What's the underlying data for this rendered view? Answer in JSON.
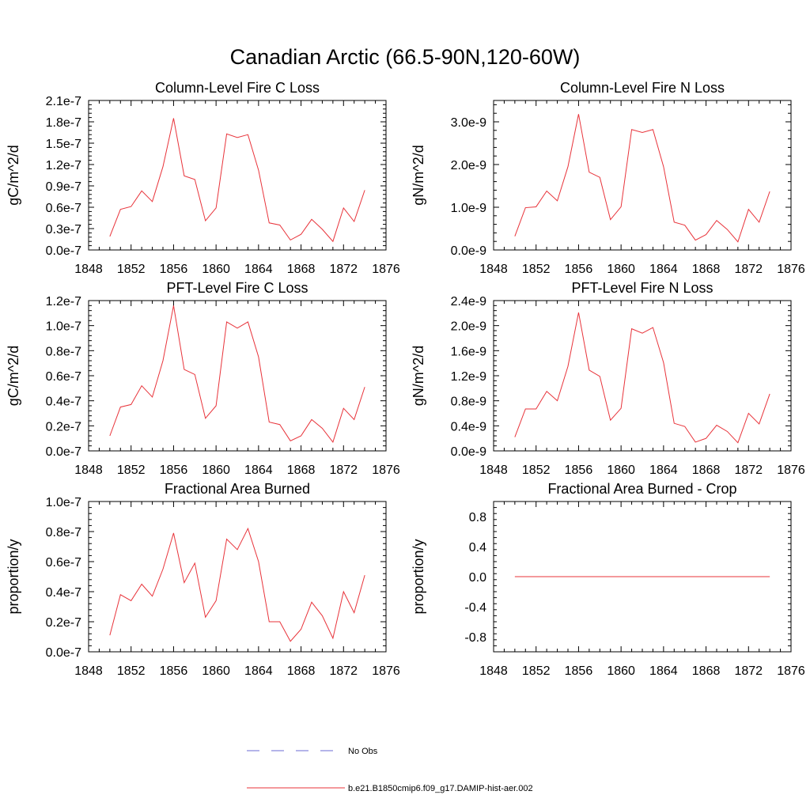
{
  "title": "Canadian Arctic (66.5-90N,120-60W)",
  "legend": [
    {
      "label": "No Obs",
      "color": "#6b6bd6",
      "style": "dashed"
    },
    {
      "label": "b.e21.B1850cmip6.f09_g17.DAMIP-hist-aer.002",
      "color": "#e8333a",
      "style": "solid"
    }
  ],
  "chart_data": [
    {
      "type": "line",
      "title": "Column-Level Fire C Loss",
      "ylabel": "gC/m^2/d",
      "xlim": [
        1848,
        1876
      ],
      "xticks": [
        "1848",
        "1852",
        "1856",
        "1860",
        "1864",
        "1868",
        "1872",
        "1876"
      ],
      "ylim": [
        0,
        2.1e-07
      ],
      "yticks": [
        {
          "v": 0,
          "label": "0.0e-7"
        },
        {
          "v": 3e-08,
          "label": "0.3e-7"
        },
        {
          "v": 6e-08,
          "label": "0.6e-7"
        },
        {
          "v": 9e-08,
          "label": "0.9e-7"
        },
        {
          "v": 1.2e-07,
          "label": "1.2e-7"
        },
        {
          "v": 1.5e-07,
          "label": "1.5e-7"
        },
        {
          "v": 1.8e-07,
          "label": "1.8e-7"
        },
        {
          "v": 2.1e-07,
          "label": "2.1e-7"
        }
      ],
      "x": [
        1850,
        1851,
        1852,
        1853,
        1854,
        1855,
        1856,
        1857,
        1858,
        1859,
        1860,
        1861,
        1862,
        1863,
        1864,
        1865,
        1866,
        1867,
        1868,
        1869,
        1870,
        1871,
        1872,
        1873,
        1874
      ],
      "series": [
        {
          "color": "#e8333a",
          "values": [
            1.9e-08,
            5.7e-08,
            6.1e-08,
            8.3e-08,
            6.8e-08,
            1.17e-07,
            1.85e-07,
            1.04e-07,
            9.9e-08,
            4.1e-08,
            5.9e-08,
            1.63e-07,
            1.58e-07,
            1.62e-07,
            1.12e-07,
            3.8e-08,
            3.5e-08,
            1.4e-08,
            2.2e-08,
            4.3e-08,
            2.9e-08,
            1.2e-08,
            5.9e-08,
            4e-08,
            8.4e-08
          ]
        }
      ]
    },
    {
      "type": "line",
      "title": "Column-Level Fire N Loss",
      "ylabel": "gN/m^2/d",
      "xlim": [
        1848,
        1876
      ],
      "xticks": [
        "1848",
        "1852",
        "1856",
        "1860",
        "1864",
        "1868",
        "1872",
        "1876"
      ],
      "ylim": [
        0,
        3.5e-09
      ],
      "yticks": [
        {
          "v": 0,
          "label": "0.0e-9"
        },
        {
          "v": 1e-09,
          "label": "1.0e-9"
        },
        {
          "v": 2e-09,
          "label": "2.0e-9"
        },
        {
          "v": 3e-09,
          "label": "3.0e-9"
        }
      ],
      "x": [
        1850,
        1851,
        1852,
        1853,
        1854,
        1855,
        1856,
        1857,
        1858,
        1859,
        1860,
        1861,
        1862,
        1863,
        1864,
        1865,
        1866,
        1867,
        1868,
        1869,
        1870,
        1871,
        1872,
        1873,
        1874
      ],
      "series": [
        {
          "color": "#e8333a",
          "values": [
            3.2e-10,
            9.9e-10,
            1.01e-09,
            1.38e-09,
            1.15e-09,
            1.95e-09,
            3.18e-09,
            1.82e-09,
            1.7e-09,
            7.1e-10,
            1.01e-09,
            2.82e-09,
            2.75e-09,
            2.82e-09,
            1.95e-09,
            6.5e-10,
            5.8e-10,
            2.3e-10,
            3.6e-10,
            6.9e-10,
            4.8e-10,
            1.9e-10,
            9.5e-10,
            6.5e-10,
            1.37e-09
          ]
        }
      ]
    },
    {
      "type": "line",
      "title": "PFT-Level Fire C Loss",
      "ylabel": "gC/m^2/d",
      "xlim": [
        1848,
        1876
      ],
      "xticks": [
        "1848",
        "1852",
        "1856",
        "1860",
        "1864",
        "1868",
        "1872",
        "1876"
      ],
      "ylim": [
        0,
        1.2e-07
      ],
      "yticks": [
        {
          "v": 0,
          "label": "0.0e-7"
        },
        {
          "v": 2e-08,
          "label": "0.2e-7"
        },
        {
          "v": 4e-08,
          "label": "0.4e-7"
        },
        {
          "v": 6e-08,
          "label": "0.6e-7"
        },
        {
          "v": 8e-08,
          "label": "0.8e-7"
        },
        {
          "v": 1e-07,
          "label": "1.0e-7"
        },
        {
          "v": 1.2e-07,
          "label": "1.2e-7"
        }
      ],
      "x": [
        1850,
        1851,
        1852,
        1853,
        1854,
        1855,
        1856,
        1857,
        1858,
        1859,
        1860,
        1861,
        1862,
        1863,
        1864,
        1865,
        1866,
        1867,
        1868,
        1869,
        1870,
        1871,
        1872,
        1873,
        1874
      ],
      "series": [
        {
          "color": "#e8333a",
          "values": [
            1.2e-08,
            3.5e-08,
            3.7e-08,
            5.2e-08,
            4.3e-08,
            7.2e-08,
            1.16e-07,
            6.5e-08,
            6.1e-08,
            2.6e-08,
            3.6e-08,
            1.03e-07,
            9.8e-08,
            1.03e-07,
            7.5e-08,
            2.3e-08,
            2.1e-08,
            8e-09,
            1.2e-08,
            2.5e-08,
            1.8e-08,
            7e-09,
            3.4e-08,
            2.5e-08,
            5.1e-08
          ]
        }
      ]
    },
    {
      "type": "line",
      "title": "PFT-Level Fire N Loss",
      "ylabel": "gN/m^2/d",
      "xlim": [
        1848,
        1876
      ],
      "xticks": [
        "1848",
        "1852",
        "1856",
        "1860",
        "1864",
        "1868",
        "1872",
        "1876"
      ],
      "ylim": [
        0,
        2.4e-09
      ],
      "yticks": [
        {
          "v": 0,
          "label": "0.0e-9"
        },
        {
          "v": 4e-10,
          "label": "0.4e-9"
        },
        {
          "v": 8e-10,
          "label": "0.8e-9"
        },
        {
          "v": 1.2e-09,
          "label": "1.2e-9"
        },
        {
          "v": 1.6e-09,
          "label": "1.6e-9"
        },
        {
          "v": 2e-09,
          "label": "2.0e-9"
        },
        {
          "v": 2.4e-09,
          "label": "2.4e-9"
        }
      ],
      "x": [
        1850,
        1851,
        1852,
        1853,
        1854,
        1855,
        1856,
        1857,
        1858,
        1859,
        1860,
        1861,
        1862,
        1863,
        1864,
        1865,
        1866,
        1867,
        1868,
        1869,
        1870,
        1871,
        1872,
        1873,
        1874
      ],
      "series": [
        {
          "color": "#e8333a",
          "values": [
            2.2e-10,
            6.7e-10,
            6.7e-10,
            9.5e-10,
            8e-10,
            1.35e-09,
            2.21e-09,
            1.29e-09,
            1.19e-09,
            4.9e-10,
            6.8e-10,
            1.95e-09,
            1.88e-09,
            1.97e-09,
            1.41e-09,
            4.4e-10,
            3.9e-10,
            1.4e-10,
            2e-10,
            4.1e-10,
            3.1e-10,
            1.3e-10,
            6e-10,
            4.3e-10,
            9.1e-10
          ]
        }
      ]
    },
    {
      "type": "line",
      "title": "Fractional Area Burned",
      "ylabel": "proportion/y",
      "xlim": [
        1848,
        1876
      ],
      "xticks": [
        "1848",
        "1852",
        "1856",
        "1860",
        "1864",
        "1868",
        "1872",
        "1876"
      ],
      "ylim": [
        0,
        1e-07
      ],
      "yticks": [
        {
          "v": 0,
          "label": "0.0e-7"
        },
        {
          "v": 2e-08,
          "label": "0.2e-7"
        },
        {
          "v": 4e-08,
          "label": "0.4e-7"
        },
        {
          "v": 6e-08,
          "label": "0.6e-7"
        },
        {
          "v": 8e-08,
          "label": "0.8e-7"
        },
        {
          "v": 1e-07,
          "label": "1.0e-7"
        }
      ],
      "x": [
        1850,
        1851,
        1852,
        1853,
        1854,
        1855,
        1856,
        1857,
        1858,
        1859,
        1860,
        1861,
        1862,
        1863,
        1864,
        1865,
        1866,
        1867,
        1868,
        1869,
        1870,
        1871,
        1872,
        1873,
        1874
      ],
      "series": [
        {
          "color": "#e8333a",
          "values": [
            1.1e-08,
            3.8e-08,
            3.4e-08,
            4.5e-08,
            3.7e-08,
            5.5e-08,
            7.9e-08,
            4.6e-08,
            5.9e-08,
            2.3e-08,
            3.4e-08,
            7.5e-08,
            6.8e-08,
            8.2e-08,
            6e-08,
            2e-08,
            2e-08,
            7e-09,
            1.5e-08,
            3.3e-08,
            2.4e-08,
            9e-09,
            4e-08,
            2.6e-08,
            5.1e-08
          ]
        }
      ]
    },
    {
      "type": "line",
      "title": "Fractional Area Burned - Crop",
      "ylabel": "proportion/y",
      "xlim": [
        1848,
        1876
      ],
      "xticks": [
        "1848",
        "1852",
        "1856",
        "1860",
        "1864",
        "1868",
        "1872",
        "1876"
      ],
      "ylim": [
        -1.0,
        1.0
      ],
      "yticks": [
        {
          "v": -0.8,
          "label": "-0.8"
        },
        {
          "v": -0.4,
          "label": "-0.4"
        },
        {
          "v": 0,
          "label": "0.0"
        },
        {
          "v": 0.4,
          "label": "0.4"
        },
        {
          "v": 0.8,
          "label": "0.8"
        }
      ],
      "x": [
        1850,
        1851,
        1852,
        1853,
        1854,
        1855,
        1856,
        1857,
        1858,
        1859,
        1860,
        1861,
        1862,
        1863,
        1864,
        1865,
        1866,
        1867,
        1868,
        1869,
        1870,
        1871,
        1872,
        1873,
        1874
      ],
      "series": [
        {
          "color": "#e8333a",
          "values": [
            0,
            0,
            0,
            0,
            0,
            0,
            0,
            0,
            0,
            0,
            0,
            0,
            0,
            0,
            0,
            0,
            0,
            0,
            0,
            0,
            0,
            0,
            0,
            0,
            0
          ]
        }
      ]
    }
  ]
}
